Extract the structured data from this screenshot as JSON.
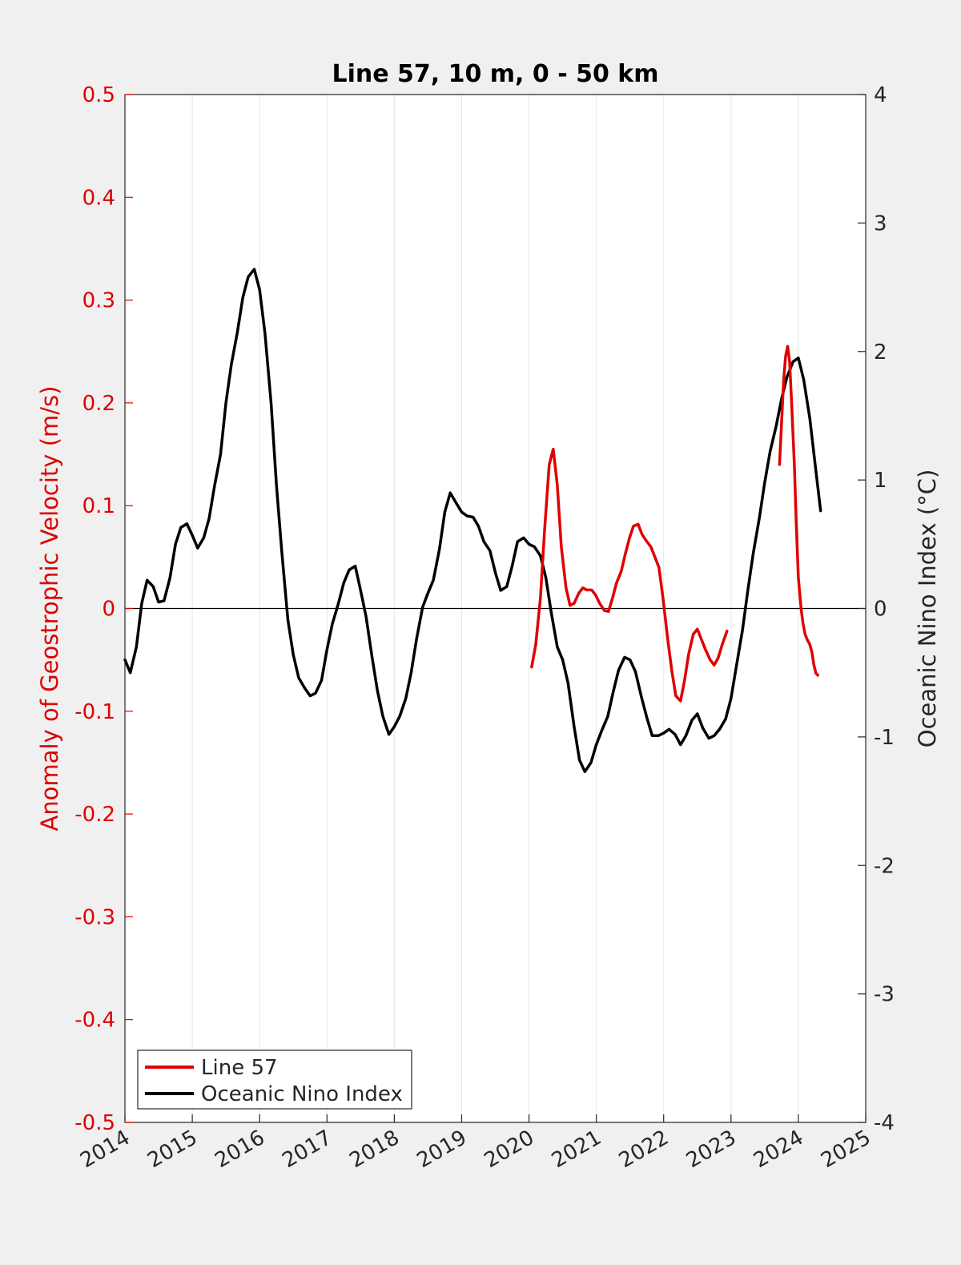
{
  "chart_data": {
    "type": "line",
    "title": "Line 57, 10 m, 0 - 50 km",
    "xlabel": "",
    "ylabel_left": "Anomaly of Geostrophic Velocity (m/s)",
    "ylabel_right": "Oceanic Nino Index (°C)",
    "xlim": [
      2014,
      2025
    ],
    "ylim_left": [
      -0.5,
      0.5
    ],
    "ylim_right": [
      -4,
      4
    ],
    "x_ticks": [
      "2014",
      "2015",
      "2016",
      "2017",
      "2018",
      "2019",
      "2020",
      "2021",
      "2022",
      "2023",
      "2024",
      "2025"
    ],
    "y_ticks_left": [
      "-0.5",
      "-0.4",
      "-0.3",
      "-0.2",
      "-0.1",
      "0",
      "0.1",
      "0.2",
      "0.3",
      "0.4",
      "0.5"
    ],
    "y_ticks_right": [
      "-4",
      "-3",
      "-2",
      "-1",
      "0",
      "1",
      "2",
      "3",
      "4"
    ],
    "grid": "vertical",
    "zero_line": true,
    "legend_position": "bottom-left",
    "colors": {
      "line57": "#e00000",
      "oni": "#000000",
      "left_axis": "#e00000"
    },
    "series": [
      {
        "name": "Line 57",
        "axis": "left",
        "segments": [
          [
            [
              2020.04,
              -0.057
            ],
            [
              2020.1,
              -0.035
            ],
            [
              2020.17,
              0.01
            ],
            [
              2020.23,
              0.075
            ],
            [
              2020.3,
              0.14
            ],
            [
              2020.36,
              0.155
            ],
            [
              2020.42,
              0.12
            ],
            [
              2020.48,
              0.06
            ],
            [
              2020.55,
              0.02
            ],
            [
              2020.61,
              0.003
            ],
            [
              2020.67,
              0.005
            ],
            [
              2020.74,
              0.015
            ],
            [
              2020.8,
              0.02
            ],
            [
              2020.86,
              0.018
            ],
            [
              2020.93,
              0.018
            ],
            [
              2020.99,
              0.013
            ],
            [
              2021.05,
              0.005
            ],
            [
              2021.12,
              -0.002
            ],
            [
              2021.18,
              -0.003
            ],
            [
              2021.24,
              0.01
            ],
            [
              2021.3,
              0.025
            ],
            [
              2021.37,
              0.036
            ],
            [
              2021.43,
              0.053
            ],
            [
              2021.49,
              0.068
            ],
            [
              2021.55,
              0.08
            ],
            [
              2021.62,
              0.082
            ],
            [
              2021.68,
              0.072
            ],
            [
              2021.74,
              0.066
            ],
            [
              2021.81,
              0.06
            ],
            [
              2021.87,
              0.05
            ],
            [
              2021.93,
              0.04
            ],
            [
              2021.99,
              0.01
            ],
            [
              2022.06,
              -0.03
            ],
            [
              2022.12,
              -0.06
            ],
            [
              2022.18,
              -0.085
            ],
            [
              2022.25,
              -0.09
            ],
            [
              2022.31,
              -0.07
            ],
            [
              2022.37,
              -0.045
            ],
            [
              2022.44,
              -0.025
            ],
            [
              2022.5,
              -0.02
            ],
            [
              2022.56,
              -0.03
            ],
            [
              2022.62,
              -0.04
            ],
            [
              2022.69,
              -0.05
            ],
            [
              2022.75,
              -0.055
            ],
            [
              2022.81,
              -0.048
            ],
            [
              2022.87,
              -0.035
            ],
            [
              2022.94,
              -0.022
            ]
          ],
          [
            [
              2023.72,
              0.14
            ],
            [
              2023.75,
              0.18
            ],
            [
              2023.78,
              0.22
            ],
            [
              2023.81,
              0.245
            ],
            [
              2023.84,
              0.255
            ],
            [
              2023.87,
              0.24
            ],
            [
              2023.9,
              0.2
            ],
            [
              2023.94,
              0.14
            ],
            [
              2023.97,
              0.08
            ],
            [
              2024.0,
              0.03
            ],
            [
              2024.04,
              0.0
            ],
            [
              2024.07,
              -0.015
            ],
            [
              2024.1,
              -0.025
            ],
            [
              2024.13,
              -0.03
            ],
            [
              2024.17,
              -0.035
            ],
            [
              2024.2,
              -0.042
            ],
            [
              2024.23,
              -0.055
            ],
            [
              2024.26,
              -0.063
            ],
            [
              2024.29,
              -0.065
            ]
          ]
        ]
      },
      {
        "name": "Oceanic Nino Index",
        "axis": "right",
        "points": [
          [
            2014.0,
            -0.4
          ],
          [
            2014.08,
            -0.5
          ],
          [
            2014.17,
            -0.3
          ],
          [
            2014.25,
            0.04
          ],
          [
            2014.33,
            0.22
          ],
          [
            2014.42,
            0.17
          ],
          [
            2014.5,
            0.05
          ],
          [
            2014.58,
            0.06
          ],
          [
            2014.67,
            0.24
          ],
          [
            2014.75,
            0.5
          ],
          [
            2014.83,
            0.63
          ],
          [
            2014.92,
            0.66
          ],
          [
            2015.0,
            0.57
          ],
          [
            2015.08,
            0.47
          ],
          [
            2015.17,
            0.55
          ],
          [
            2015.25,
            0.7
          ],
          [
            2015.33,
            0.95
          ],
          [
            2015.42,
            1.2
          ],
          [
            2015.5,
            1.6
          ],
          [
            2015.58,
            1.9
          ],
          [
            2015.67,
            2.15
          ],
          [
            2015.75,
            2.42
          ],
          [
            2015.83,
            2.58
          ],
          [
            2015.92,
            2.64
          ],
          [
            2016.0,
            2.48
          ],
          [
            2016.08,
            2.14
          ],
          [
            2016.17,
            1.6
          ],
          [
            2016.25,
            0.96
          ],
          [
            2016.33,
            0.44
          ],
          [
            2016.42,
            -0.09
          ],
          [
            2016.5,
            -0.36
          ],
          [
            2016.58,
            -0.54
          ],
          [
            2016.67,
            -0.62
          ],
          [
            2016.75,
            -0.68
          ],
          [
            2016.83,
            -0.66
          ],
          [
            2016.92,
            -0.56
          ],
          [
            2017.0,
            -0.32
          ],
          [
            2017.08,
            -0.12
          ],
          [
            2017.17,
            0.04
          ],
          [
            2017.25,
            0.2
          ],
          [
            2017.33,
            0.3
          ],
          [
            2017.42,
            0.33
          ],
          [
            2017.5,
            0.14
          ],
          [
            2017.58,
            -0.06
          ],
          [
            2017.67,
            -0.38
          ],
          [
            2017.75,
            -0.64
          ],
          [
            2017.83,
            -0.84
          ],
          [
            2017.92,
            -0.98
          ],
          [
            2018.0,
            -0.92
          ],
          [
            2018.08,
            -0.84
          ],
          [
            2018.17,
            -0.7
          ],
          [
            2018.25,
            -0.5
          ],
          [
            2018.33,
            -0.24
          ],
          [
            2018.42,
            0.01
          ],
          [
            2018.5,
            0.12
          ],
          [
            2018.58,
            0.22
          ],
          [
            2018.67,
            0.46
          ],
          [
            2018.75,
            0.75
          ],
          [
            2018.83,
            0.9
          ],
          [
            2018.92,
            0.82
          ],
          [
            2019.0,
            0.75
          ],
          [
            2019.08,
            0.72
          ],
          [
            2019.17,
            0.71
          ],
          [
            2019.25,
            0.64
          ],
          [
            2019.33,
            0.52
          ],
          [
            2019.42,
            0.45
          ],
          [
            2019.5,
            0.28
          ],
          [
            2019.58,
            0.14
          ],
          [
            2019.67,
            0.17
          ],
          [
            2019.75,
            0.33
          ],
          [
            2019.83,
            0.52
          ],
          [
            2019.92,
            0.55
          ],
          [
            2020.0,
            0.5
          ],
          [
            2020.08,
            0.48
          ],
          [
            2020.17,
            0.41
          ],
          [
            2020.25,
            0.24
          ],
          [
            2020.33,
            -0.03
          ],
          [
            2020.42,
            -0.3
          ],
          [
            2020.5,
            -0.4
          ],
          [
            2020.58,
            -0.58
          ],
          [
            2020.67,
            -0.92
          ],
          [
            2020.75,
            -1.18
          ],
          [
            2020.83,
            -1.27
          ],
          [
            2020.92,
            -1.2
          ],
          [
            2021.0,
            -1.06
          ],
          [
            2021.08,
            -0.95
          ],
          [
            2021.17,
            -0.84
          ],
          [
            2021.25,
            -0.65
          ],
          [
            2021.33,
            -0.48
          ],
          [
            2021.42,
            -0.38
          ],
          [
            2021.5,
            -0.4
          ],
          [
            2021.58,
            -0.49
          ],
          [
            2021.67,
            -0.69
          ],
          [
            2021.75,
            -0.85
          ],
          [
            2021.83,
            -0.99
          ],
          [
            2021.92,
            -0.99
          ],
          [
            2022.0,
            -0.97
          ],
          [
            2022.08,
            -0.94
          ],
          [
            2022.17,
            -0.98
          ],
          [
            2022.25,
            -1.06
          ],
          [
            2022.33,
            -0.99
          ],
          [
            2022.42,
            -0.87
          ],
          [
            2022.5,
            -0.82
          ],
          [
            2022.58,
            -0.93
          ],
          [
            2022.67,
            -1.01
          ],
          [
            2022.75,
            -0.99
          ],
          [
            2022.83,
            -0.94
          ],
          [
            2022.92,
            -0.86
          ],
          [
            2023.0,
            -0.7
          ],
          [
            2023.08,
            -0.45
          ],
          [
            2023.17,
            -0.17
          ],
          [
            2023.25,
            0.14
          ],
          [
            2023.33,
            0.43
          ],
          [
            2023.42,
            0.7
          ],
          [
            2023.5,
            0.98
          ],
          [
            2023.58,
            1.22
          ],
          [
            2023.67,
            1.42
          ],
          [
            2023.75,
            1.63
          ],
          [
            2023.83,
            1.8
          ],
          [
            2023.92,
            1.92
          ],
          [
            2024.0,
            1.95
          ],
          [
            2024.08,
            1.78
          ],
          [
            2024.17,
            1.48
          ],
          [
            2024.25,
            1.12
          ],
          [
            2024.33,
            0.76
          ]
        ]
      }
    ]
  }
}
